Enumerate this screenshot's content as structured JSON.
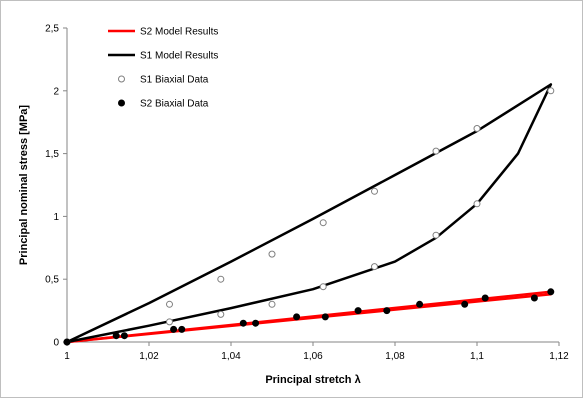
{
  "chart_data": {
    "type": "scatter",
    "xlabel": "Principal stretch λ",
    "ylabel": "Principal nominal stress [MPa]",
    "xlim": [
      1,
      1.12
    ],
    "ylim": [
      0,
      2.5
    ],
    "x_ticks": [
      "1",
      "1,02",
      "1,04",
      "1,06",
      "1,08",
      "1,1",
      "1,12"
    ],
    "y_ticks": [
      "0",
      "0,5",
      "1",
      "1,5",
      "2",
      "2,5"
    ],
    "x_tick_values": [
      1,
      1.02,
      1.04,
      1.06,
      1.08,
      1.1,
      1.12
    ],
    "y_tick_values": [
      0,
      0.5,
      1,
      1.5,
      2,
      2.5
    ],
    "grid": false,
    "legend_position": "top-left",
    "legend": [
      "S2 Model Results",
      "S1 Model Results",
      "S1 Biaxial Data",
      "S2 Biaxial Data"
    ],
    "series": [
      {
        "name": "S2 Model Results",
        "kind": "line",
        "color": "#ff0000",
        "x": [
          1,
          1.118
        ],
        "y": [
          0,
          0.38
        ]
      },
      {
        "name": "S2 Model Results",
        "kind": "line",
        "color": "#ff0000",
        "x": [
          1,
          1.118
        ],
        "y": [
          0,
          0.4
        ]
      },
      {
        "name": "S1 Model Results",
        "kind": "line",
        "color": "#000000",
        "x": [
          1,
          1.02,
          1.04,
          1.06,
          1.08,
          1.1,
          1.118
        ],
        "y": [
          0,
          0.31,
          0.64,
          0.98,
          1.33,
          1.68,
          2.05
        ]
      },
      {
        "name": "S1 Model Results",
        "kind": "line",
        "color": "#000000",
        "x": [
          1,
          1.02,
          1.04,
          1.06,
          1.08,
          1.09,
          1.1,
          1.11,
          1.118
        ],
        "y": [
          0,
          0.13,
          0.27,
          0.42,
          0.64,
          0.83,
          1.1,
          1.5,
          2.05
        ]
      },
      {
        "name": "S1 Biaxial Data",
        "kind": "points",
        "marker": "open",
        "color": "#000000",
        "x": [
          1,
          1.025,
          1.0375,
          1.05,
          1.0625,
          1.075,
          1.09,
          1.1,
          1.118,
          1.025,
          1.0375,
          1.05,
          1.0625,
          1.075,
          1.09,
          1.1
        ],
        "y": [
          0,
          0.3,
          0.5,
          0.7,
          0.95,
          1.2,
          1.52,
          1.7,
          2.0,
          0.16,
          0.22,
          0.3,
          0.44,
          0.6,
          0.85,
          1.1
        ]
      },
      {
        "name": "S2 Biaxial Data",
        "kind": "points",
        "marker": "filled",
        "color": "#000000",
        "x": [
          1,
          1.012,
          1.014,
          1.026,
          1.028,
          1.043,
          1.046,
          1.056,
          1.063,
          1.071,
          1.078,
          1.086,
          1.097,
          1.102,
          1.114,
          1.118
        ],
        "y": [
          0,
          0.05,
          0.05,
          0.1,
          0.1,
          0.15,
          0.15,
          0.2,
          0.2,
          0.25,
          0.25,
          0.3,
          0.3,
          0.35,
          0.35,
          0.4
        ]
      }
    ]
  }
}
